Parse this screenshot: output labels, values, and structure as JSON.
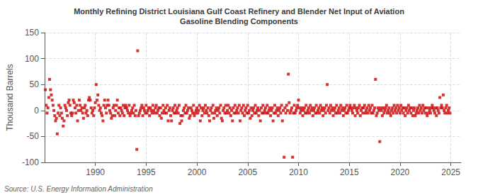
{
  "chart_data": {
    "type": "scatter",
    "title": "Monthly Refining District Louisiana Gulf Coast Refinery and Blender Net Input of Aviation\nGasoline Blending Components",
    "ylabel": "Thousand Barrels",
    "source": "Source: U.S. Energy Information Administration",
    "color": "#cc0000",
    "marker": "square",
    "grid": true,
    "xlim": [
      1985.0,
      2026.0
    ],
    "xticks": [
      1990,
      1995,
      2000,
      2005,
      2010,
      2015,
      2020,
      2025
    ],
    "ylim": [
      -100,
      150
    ],
    "yticks": [
      -100,
      -50,
      0,
      50,
      100,
      150
    ],
    "x": [
      1985.083,
      1985.167,
      1985.25,
      1985.333,
      1985.417,
      1985.5,
      1985.583,
      1985.667,
      1985.75,
      1985.833,
      1985.917,
      1986.0,
      1986.083,
      1986.167,
      1986.25,
      1986.333,
      1986.417,
      1986.5,
      1986.583,
      1986.667,
      1986.75,
      1986.833,
      1986.917,
      1987.0,
      1987.083,
      1987.167,
      1987.25,
      1987.333,
      1987.417,
      1987.5,
      1987.583,
      1987.667,
      1987.75,
      1987.833,
      1987.917,
      1988.0,
      1988.083,
      1988.167,
      1988.25,
      1988.333,
      1988.417,
      1988.5,
      1988.583,
      1988.667,
      1988.75,
      1988.833,
      1988.917,
      1989.0,
      1989.083,
      1989.167,
      1989.25,
      1989.333,
      1989.417,
      1989.5,
      1989.583,
      1989.667,
      1989.75,
      1989.833,
      1989.917,
      1990.0,
      1990.083,
      1990.167,
      1990.25,
      1990.333,
      1990.417,
      1990.5,
      1990.583,
      1990.667,
      1990.75,
      1990.833,
      1990.917,
      1991.0,
      1991.083,
      1991.167,
      1991.25,
      1991.333,
      1991.417,
      1991.5,
      1991.583,
      1991.667,
      1991.75,
      1991.833,
      1991.917,
      1992.0,
      1992.083,
      1992.167,
      1992.25,
      1992.333,
      1992.417,
      1992.5,
      1992.583,
      1992.667,
      1992.75,
      1992.833,
      1992.917,
      1993.0,
      1993.083,
      1993.167,
      1993.25,
      1993.333,
      1993.417,
      1993.5,
      1993.583,
      1993.667,
      1993.75,
      1993.833,
      1993.917,
      1994.0,
      1994.083,
      1994.167,
      1994.25,
      1994.333,
      1994.417,
      1994.5,
      1994.583,
      1994.667,
      1994.75,
      1994.833,
      1994.917,
      1995.0,
      1995.083,
      1995.167,
      1995.25,
      1995.333,
      1995.417,
      1995.5,
      1995.583,
      1995.667,
      1995.75,
      1995.833,
      1995.917,
      1996.0,
      1996.083,
      1996.167,
      1996.25,
      1996.333,
      1996.417,
      1996.5,
      1996.583,
      1996.667,
      1996.75,
      1996.833,
      1996.917,
      1997.0,
      1997.083,
      1997.167,
      1997.25,
      1997.333,
      1997.417,
      1997.5,
      1997.583,
      1997.667,
      1997.75,
      1997.833,
      1997.917,
      1998.0,
      1998.083,
      1998.167,
      1998.25,
      1998.333,
      1998.417,
      1998.5,
      1998.583,
      1998.667,
      1998.75,
      1998.833,
      1998.917,
      1999.0,
      1999.083,
      1999.167,
      1999.25,
      1999.333,
      1999.417,
      1999.5,
      1999.583,
      1999.667,
      1999.75,
      1999.833,
      1999.917,
      2000.0,
      2000.083,
      2000.167,
      2000.25,
      2000.333,
      2000.417,
      2000.5,
      2000.583,
      2000.667,
      2000.75,
      2000.833,
      2000.917,
      2001.0,
      2001.083,
      2001.167,
      2001.25,
      2001.333,
      2001.417,
      2001.5,
      2001.583,
      2001.667,
      2001.75,
      2001.833,
      2001.917,
      2002.0,
      2002.083,
      2002.167,
      2002.25,
      2002.333,
      2002.417,
      2002.5,
      2002.583,
      2002.667,
      2002.75,
      2002.833,
      2002.917,
      2003.0,
      2003.083,
      2003.167,
      2003.25,
      2003.333,
      2003.417,
      2003.5,
      2003.583,
      2003.667,
      2003.75,
      2003.833,
      2003.917,
      2004.0,
      2004.083,
      2004.167,
      2004.25,
      2004.333,
      2004.417,
      2004.5,
      2004.583,
      2004.667,
      2004.75,
      2004.833,
      2004.917,
      2005.0,
      2005.083,
      2005.167,
      2005.25,
      2005.333,
      2005.417,
      2005.5,
      2005.583,
      2005.667,
      2005.75,
      2005.833,
      2005.917,
      2006.0,
      2006.083,
      2006.167,
      2006.25,
      2006.333,
      2006.417,
      2006.5,
      2006.583,
      2006.667,
      2006.75,
      2006.833,
      2006.917,
      2007.0,
      2007.083,
      2007.167,
      2007.25,
      2007.333,
      2007.417,
      2007.5,
      2007.583,
      2007.667,
      2007.75,
      2007.833,
      2007.917,
      2008.0,
      2008.083,
      2008.167,
      2008.25,
      2008.333,
      2008.417,
      2008.5,
      2008.583,
      2008.667,
      2008.75,
      2008.833,
      2008.917,
      2009.0,
      2009.083,
      2009.167,
      2009.25,
      2009.333,
      2009.417,
      2009.5,
      2009.583,
      2009.667,
      2009.75,
      2009.833,
      2009.917,
      2010.0,
      2010.083,
      2010.167,
      2010.25,
      2010.333,
      2010.417,
      2010.5,
      2010.583,
      2010.667,
      2010.75,
      2010.833,
      2010.917,
      2011.0,
      2011.083,
      2011.167,
      2011.25,
      2011.333,
      2011.417,
      2011.5,
      2011.583,
      2011.667,
      2011.75,
      2011.833,
      2011.917,
      2012.0,
      2012.083,
      2012.167,
      2012.25,
      2012.333,
      2012.417,
      2012.5,
      2012.583,
      2012.667,
      2012.75,
      2012.833,
      2012.917,
      2013.0,
      2013.083,
      2013.167,
      2013.25,
      2013.333,
      2013.417,
      2013.5,
      2013.583,
      2013.667,
      2013.75,
      2013.833,
      2013.917,
      2014.0,
      2014.083,
      2014.167,
      2014.25,
      2014.333,
      2014.417,
      2014.5,
      2014.583,
      2014.667,
      2014.75,
      2014.833,
      2014.917,
      2015.0,
      2015.083,
      2015.167,
      2015.25,
      2015.333,
      2015.417,
      2015.5,
      2015.583,
      2015.667,
      2015.75,
      2015.833,
      2015.917,
      2016.0,
      2016.083,
      2016.167,
      2016.25,
      2016.333,
      2016.417,
      2016.5,
      2016.583,
      2016.667,
      2016.75,
      2016.833,
      2016.917,
      2017.0,
      2017.083,
      2017.167,
      2017.25,
      2017.333,
      2017.417,
      2017.5,
      2017.583,
      2017.667,
      2017.75,
      2017.833,
      2017.917,
      2018.0,
      2018.083,
      2018.167,
      2018.25,
      2018.333,
      2018.417,
      2018.5,
      2018.583,
      2018.667,
      2018.75,
      2018.833,
      2018.917,
      2019.0,
      2019.083,
      2019.167,
      2019.25,
      2019.333,
      2019.417,
      2019.5,
      2019.583,
      2019.667,
      2019.75,
      2019.833,
      2019.917,
      2020.0,
      2020.083,
      2020.167,
      2020.25,
      2020.333,
      2020.417,
      2020.5,
      2020.583,
      2020.667,
      2020.75,
      2020.833,
      2020.917,
      2021.0,
      2021.083,
      2021.167,
      2021.25,
      2021.333,
      2021.417,
      2021.5,
      2021.583,
      2021.667,
      2021.75,
      2021.833,
      2021.917,
      2022.0,
      2022.083,
      2022.167,
      2022.25,
      2022.333,
      2022.417,
      2022.5,
      2022.583,
      2022.667,
      2022.75,
      2022.833,
      2022.917,
      2023.0,
      2023.083,
      2023.167,
      2023.25,
      2023.333,
      2023.417,
      2023.5,
      2023.583,
      2023.667,
      2023.75,
      2023.833,
      2023.917,
      2024.0,
      2024.083,
      2024.167,
      2024.25,
      2024.333,
      2024.417,
      2024.5,
      2024.583,
      2024.667,
      2024.75,
      2024.833,
      2024.917
    ],
    "values": [
      40,
      10,
      -5,
      5,
      25,
      60,
      40,
      30,
      20,
      10,
      0,
      -10,
      -20,
      -15,
      -45,
      -5,
      10,
      -10,
      5,
      -5,
      -15,
      -30,
      -20,
      10,
      5,
      0,
      -10,
      15,
      20,
      10,
      -5,
      -10,
      -5,
      20,
      15,
      5,
      -5,
      10,
      -20,
      0,
      20,
      10,
      0,
      5,
      -5,
      -15,
      5,
      10,
      -5,
      0,
      -10,
      20,
      25,
      20,
      5,
      -5,
      0,
      -10,
      5,
      15,
      50,
      20,
      30,
      10,
      0,
      5,
      -5,
      -10,
      -20,
      10,
      20,
      5,
      -5,
      10,
      20,
      10,
      0,
      -5,
      -15,
      -10,
      5,
      10,
      -10,
      0,
      10,
      20,
      -5,
      5,
      -10,
      5,
      0,
      -5,
      10,
      -10,
      5,
      10,
      5,
      0,
      -5,
      10,
      -10,
      -5,
      0,
      5,
      -5,
      10,
      -10,
      0,
      -75,
      115,
      -10,
      -5,
      0,
      5,
      10,
      -10,
      5,
      0,
      -5,
      10,
      -5,
      0,
      5,
      -10,
      5,
      0,
      -5,
      10,
      0,
      -5,
      5,
      10,
      -5,
      0,
      5,
      -10,
      5,
      -15,
      -5,
      10,
      0,
      -5,
      5,
      -5,
      10,
      -20,
      0,
      5,
      -10,
      -20,
      0,
      5,
      -5,
      10,
      -5,
      0,
      5,
      -5,
      10,
      -25,
      -10,
      -20,
      -10,
      0,
      5,
      -5,
      10,
      -5,
      0,
      5,
      -15,
      -10,
      5,
      0,
      -5,
      10,
      -10,
      -5,
      0,
      5,
      -5,
      0,
      10,
      -20,
      5,
      -10,
      0,
      5,
      -5,
      10,
      0,
      -5,
      5,
      -10,
      -20,
      0,
      5,
      -5,
      10,
      -15,
      -5,
      0,
      5,
      -10,
      0,
      5,
      -5,
      10,
      -15,
      -20,
      0,
      5,
      -5,
      10,
      -5,
      0,
      10,
      -5,
      5,
      -10,
      0,
      -20,
      5,
      -5,
      10,
      -5,
      0,
      5,
      -5,
      10,
      -20,
      0,
      5,
      -5,
      10,
      -10,
      0,
      5,
      -5,
      10,
      -5,
      0,
      -15,
      5,
      -10,
      0,
      5,
      -5,
      10,
      -5,
      0,
      5,
      -10,
      0,
      -20,
      5,
      -5,
      10,
      -5,
      0,
      5,
      -5,
      10,
      -5,
      0,
      5,
      -10,
      0,
      5,
      -20,
      -5,
      10,
      -5,
      0,
      5,
      -10,
      0,
      5,
      -5,
      10,
      -20,
      0,
      -90,
      5,
      -5,
      10,
      0,
      70,
      15,
      -5,
      0,
      5,
      -90,
      -5,
      10,
      -5,
      0,
      5,
      10,
      20,
      5,
      -5,
      0,
      5,
      -10,
      0,
      5,
      -5,
      10,
      -5,
      0,
      5,
      -5,
      10,
      0,
      5,
      -10,
      0,
      5,
      -5,
      10,
      -5,
      0,
      5,
      -5,
      10,
      0,
      5,
      -10,
      0,
      5,
      -5,
      10,
      50,
      0,
      5,
      -5,
      10,
      0,
      5,
      -10,
      0,
      5,
      -5,
      10,
      -5,
      0,
      5,
      -5,
      10,
      0,
      5,
      -10,
      0,
      5,
      -5,
      10,
      -5,
      0,
      5,
      10,
      5,
      0,
      -5,
      5,
      10,
      -10,
      5,
      0,
      -5,
      5,
      10,
      -10,
      0,
      5,
      -5,
      5,
      10,
      -5,
      0,
      5,
      -5,
      10,
      0,
      5,
      -5,
      10,
      -5,
      0,
      5,
      60,
      -10,
      -5,
      5,
      0,
      -60,
      5,
      0,
      -10,
      5,
      -5,
      0,
      5,
      10,
      -5,
      0,
      5,
      -5,
      -10,
      0,
      5,
      -5,
      10,
      0,
      5,
      -5,
      10,
      0,
      5,
      -5,
      10,
      0,
      5,
      -5,
      5,
      -10,
      0,
      5,
      -5,
      10,
      0,
      5,
      -5,
      5,
      -10,
      0,
      5,
      -10,
      -5,
      0,
      5,
      -5,
      10,
      0,
      5,
      -5,
      10,
      0,
      5,
      -5,
      5,
      -10,
      -5,
      5,
      0,
      -5,
      5,
      10,
      5,
      0,
      -5,
      5,
      -10,
      5,
      0,
      -5,
      25,
      5,
      10,
      5,
      30,
      0,
      -5,
      5,
      10,
      -5,
      0,
      5,
      -5
    ]
  }
}
